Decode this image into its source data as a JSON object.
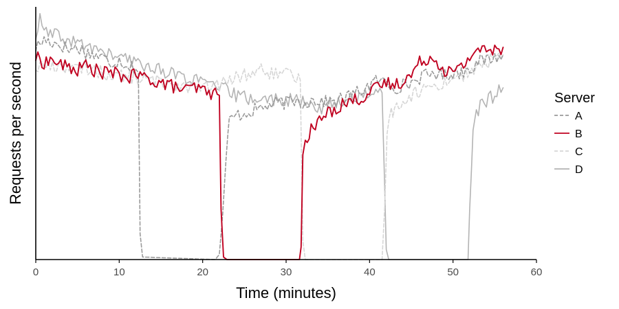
{
  "chart_data": {
    "type": "line",
    "xlabel": "Time (minutes)",
    "ylabel": "Requests per second",
    "xlim": [
      0,
      60
    ],
    "ylim": [
      0,
      100
    ],
    "xticks": [
      0,
      10,
      20,
      30,
      40,
      50,
      60
    ],
    "grid": false,
    "legend": {
      "title": "Server",
      "placement": "right"
    },
    "series": [
      {
        "name": "A",
        "color": "#9a9a9a",
        "dash": "dashed",
        "points": [
          [
            0,
            84
          ],
          [
            1,
            87
          ],
          [
            2,
            86
          ],
          [
            3,
            85
          ],
          [
            4,
            83
          ],
          [
            5,
            84
          ],
          [
            6,
            82
          ],
          [
            7,
            81
          ],
          [
            8,
            80
          ],
          [
            9,
            78
          ],
          [
            10,
            79
          ],
          [
            11,
            77
          ],
          [
            12,
            76
          ],
          [
            12.3,
            74
          ],
          [
            12.5,
            10
          ],
          [
            12.8,
            1
          ],
          [
            21.5,
            0
          ],
          [
            22,
            2
          ],
          [
            22.4,
            18
          ],
          [
            22.8,
            40
          ],
          [
            23.2,
            55
          ],
          [
            24,
            57
          ],
          [
            25,
            58
          ],
          [
            26,
            59
          ],
          [
            27,
            60
          ],
          [
            28,
            61
          ],
          [
            29,
            62
          ],
          [
            30,
            62
          ],
          [
            31,
            63
          ],
          [
            32,
            62
          ],
          [
            33,
            63
          ],
          [
            34,
            63
          ],
          [
            35,
            62
          ],
          [
            36,
            63
          ],
          [
            37,
            64
          ],
          [
            38,
            65
          ],
          [
            39,
            67
          ],
          [
            40,
            69
          ],
          [
            41,
            71
          ],
          [
            42,
            70
          ],
          [
            43,
            68
          ],
          [
            44,
            69
          ],
          [
            45,
            70
          ],
          [
            46,
            72
          ],
          [
            47,
            73
          ],
          [
            48,
            74
          ],
          [
            49,
            73
          ],
          [
            50,
            74
          ],
          [
            51,
            74
          ],
          [
            52,
            76
          ],
          [
            53,
            78
          ],
          [
            54,
            79
          ],
          [
            55,
            80
          ],
          [
            56,
            81
          ]
        ]
      },
      {
        "name": "B",
        "color": "#c00020",
        "dash": "solid",
        "points": [
          [
            0,
            80
          ],
          [
            1,
            78
          ],
          [
            2,
            79
          ],
          [
            3,
            77
          ],
          [
            4,
            76
          ],
          [
            5,
            75
          ],
          [
            6,
            77
          ],
          [
            7,
            75
          ],
          [
            8,
            74
          ],
          [
            9,
            74
          ],
          [
            10,
            73
          ],
          [
            11,
            72
          ],
          [
            12,
            73
          ],
          [
            13,
            72
          ],
          [
            14,
            71
          ],
          [
            15,
            70
          ],
          [
            16,
            69
          ],
          [
            17,
            68
          ],
          [
            18,
            67
          ],
          [
            19,
            68
          ],
          [
            20,
            67
          ],
          [
            21,
            66
          ],
          [
            22,
            65
          ],
          [
            22.2,
            20
          ],
          [
            22.5,
            1
          ],
          [
            22.9,
            0
          ],
          [
            31.6,
            0
          ],
          [
            31.8,
            5
          ],
          [
            32,
            40
          ],
          [
            32.3,
            48
          ],
          [
            33,
            51
          ],
          [
            34,
            55
          ],
          [
            35,
            58
          ],
          [
            36,
            60
          ],
          [
            37,
            62
          ],
          [
            38,
            63
          ],
          [
            39,
            64
          ],
          [
            40,
            66
          ],
          [
            41,
            68
          ],
          [
            42,
            70
          ],
          [
            43,
            69
          ],
          [
            44,
            71
          ],
          [
            45,
            73
          ],
          [
            46,
            78
          ],
          [
            47,
            80
          ],
          [
            48,
            79
          ],
          [
            49,
            75
          ],
          [
            50,
            74
          ],
          [
            51,
            76
          ],
          [
            52,
            80
          ],
          [
            53,
            84
          ],
          [
            54,
            82
          ],
          [
            55,
            83
          ],
          [
            56,
            84
          ]
        ]
      },
      {
        "name": "C",
        "color": "#d6d6d6",
        "dash": "dashed",
        "points": [
          [
            0,
            76
          ],
          [
            1,
            77
          ],
          [
            2,
            76
          ],
          [
            3,
            77
          ],
          [
            4,
            76
          ],
          [
            5,
            75
          ],
          [
            6,
            76
          ],
          [
            7,
            75
          ],
          [
            8,
            74
          ],
          [
            9,
            73
          ],
          [
            10,
            73
          ],
          [
            11,
            72
          ],
          [
            12,
            72
          ],
          [
            13,
            71
          ],
          [
            14,
            71
          ],
          [
            15,
            70
          ],
          [
            16,
            70
          ],
          [
            17,
            69
          ],
          [
            18,
            69
          ],
          [
            19,
            68
          ],
          [
            20,
            68
          ],
          [
            21,
            68
          ],
          [
            22,
            69
          ],
          [
            24,
            72
          ],
          [
            25,
            73
          ],
          [
            26,
            74
          ],
          [
            27,
            75
          ],
          [
            28,
            74
          ],
          [
            29,
            73
          ],
          [
            30,
            73
          ],
          [
            31,
            72
          ],
          [
            31.7,
            71
          ],
          [
            32,
            10
          ],
          [
            32.3,
            0
          ],
          [
            41.5,
            0
          ],
          [
            41.8,
            20
          ],
          [
            42.1,
            52
          ],
          [
            42.6,
            58
          ],
          [
            43,
            60
          ],
          [
            44,
            63
          ],
          [
            45,
            65
          ],
          [
            46,
            67
          ],
          [
            47,
            68
          ],
          [
            48,
            69
          ],
          [
            49,
            70
          ],
          [
            50,
            72
          ],
          [
            51,
            73
          ],
          [
            52,
            74
          ],
          [
            53,
            76
          ],
          [
            54,
            78
          ],
          [
            55,
            80
          ],
          [
            56,
            81
          ]
        ]
      },
      {
        "name": "D",
        "color": "#b3b3b3",
        "dash": "solid",
        "points": [
          [
            0,
            88
          ],
          [
            0.5,
            95
          ],
          [
            1,
            90
          ],
          [
            2,
            89
          ],
          [
            3,
            88
          ],
          [
            4,
            86
          ],
          [
            5,
            86
          ],
          [
            6,
            84
          ],
          [
            7,
            84
          ],
          [
            8,
            82
          ],
          [
            9,
            81
          ],
          [
            10,
            80
          ],
          [
            11,
            79
          ],
          [
            12,
            78
          ],
          [
            13,
            77
          ],
          [
            14,
            76
          ],
          [
            15,
            75
          ],
          [
            16,
            74
          ],
          [
            17,
            73
          ],
          [
            18,
            72
          ],
          [
            19,
            71
          ],
          [
            20,
            70
          ],
          [
            21,
            69
          ],
          [
            22,
            68
          ],
          [
            23,
            67
          ],
          [
            24,
            65
          ],
          [
            25,
            64
          ],
          [
            26,
            64
          ],
          [
            27,
            63
          ],
          [
            28,
            63
          ],
          [
            29,
            64
          ],
          [
            30,
            63
          ],
          [
            31,
            63
          ],
          [
            32,
            62
          ],
          [
            33,
            61
          ],
          [
            34,
            60
          ],
          [
            35,
            61
          ],
          [
            36,
            62
          ],
          [
            37,
            63
          ],
          [
            38,
            64
          ],
          [
            39,
            65
          ],
          [
            40,
            66
          ],
          [
            41,
            67
          ],
          [
            41.5,
            66
          ],
          [
            41.8,
            30
          ],
          [
            42,
            4
          ],
          [
            42.3,
            0
          ],
          [
            51.8,
            0
          ],
          [
            52,
            20
          ],
          [
            52.4,
            50
          ],
          [
            52.8,
            58
          ],
          [
            53.5,
            62
          ],
          [
            54,
            63
          ],
          [
            55,
            65
          ],
          [
            56,
            68
          ]
        ]
      }
    ]
  }
}
